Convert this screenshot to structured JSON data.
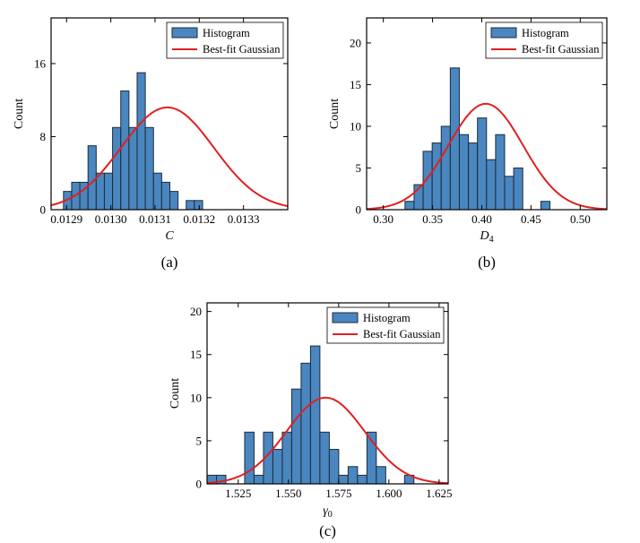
{
  "chart_data": [
    {
      "type": "bar",
      "panel": "a",
      "caption": "(a)",
      "title": "",
      "xlabel": "C",
      "xlabel_sub": "",
      "ylabel": "Count",
      "xlim": [
        0.012865,
        0.0134
      ],
      "ylim": [
        0,
        21
      ],
      "xticks": [
        0.0129,
        0.013,
        0.0131,
        0.0132,
        0.0133
      ],
      "xtick_labels": [
        "0.0129",
        "0.0130",
        "0.0131",
        "0.0132",
        "0.0133"
      ],
      "yticks": [
        0,
        8,
        16
      ],
      "ytick_labels": [
        "0",
        "8",
        "16"
      ],
      "bin_start": 0.012893,
      "bin_width": 1.85e-05,
      "counts": [
        2,
        3,
        3,
        7,
        4,
        4,
        9,
        13,
        9,
        15,
        9,
        4,
        3,
        2,
        0,
        1,
        1
      ],
      "gaussian": {
        "mean": 0.013128,
        "sd": 0.000105,
        "peak": 11.2
      },
      "legend": {
        "position": "top-right",
        "items": [
          "Histogram",
          "Best-fit Gaussian"
        ]
      }
    },
    {
      "type": "bar",
      "panel": "b",
      "caption": "(b)",
      "title": "",
      "xlabel": "D",
      "xlabel_sub": "4",
      "ylabel": "Count",
      "xlim": [
        0.283,
        0.527
      ],
      "ylim": [
        0,
        23
      ],
      "xticks": [
        0.3,
        0.35,
        0.4,
        0.45,
        0.5
      ],
      "xtick_labels": [
        "0.30",
        "0.35",
        "0.40",
        "0.45",
        "0.50"
      ],
      "yticks": [
        0,
        5,
        10,
        15,
        20
      ],
      "ytick_labels": [
        "0",
        "5",
        "10",
        "15",
        "20"
      ],
      "bin_start": 0.322,
      "bin_width": 0.0092,
      "counts": [
        1,
        3,
        7,
        8,
        10,
        17,
        9,
        8,
        11,
        6,
        9,
        4,
        5,
        0,
        0,
        1
      ],
      "gaussian": {
        "mean": 0.404,
        "sd": 0.038,
        "peak": 12.7
      },
      "legend": {
        "position": "top-right",
        "items": [
          "Histogram",
          "Best-fit Gaussian"
        ]
      }
    },
    {
      "type": "bar",
      "panel": "c",
      "caption": "(c)",
      "title": "",
      "xlabel": "γ",
      "xlabel_sub": "0",
      "ylabel": "Count",
      "xlim": [
        1.5095,
        1.6295
      ],
      "ylim": [
        0,
        21
      ],
      "xticks": [
        1.525,
        1.55,
        1.575,
        1.6,
        1.625
      ],
      "xtick_labels": [
        "1.525",
        "1.550",
        "1.575",
        "1.600",
        "1.625"
      ],
      "yticks": [
        0,
        5,
        10,
        15,
        20
      ],
      "ytick_labels": [
        "0",
        "5",
        "10",
        "15",
        "20"
      ],
      "bin_start": 1.5095,
      "bin_width": 0.00468,
      "counts": [
        1,
        1,
        0,
        0,
        6,
        1,
        6,
        4,
        6,
        11,
        14,
        16,
        6,
        4,
        1,
        2,
        1,
        6,
        2,
        0,
        0,
        1
      ],
      "gaussian": {
        "mean": 1.5685,
        "sd": 0.0195,
        "peak": 10.0
      },
      "legend": {
        "position": "top-right",
        "items": [
          "Histogram",
          "Best-fit Gaussian"
        ]
      }
    }
  ],
  "colors": {
    "bar_fill": "#4a86bf",
    "bar_edge": "#1c2c3c",
    "curve": "#e02020",
    "axis": "#000000"
  }
}
